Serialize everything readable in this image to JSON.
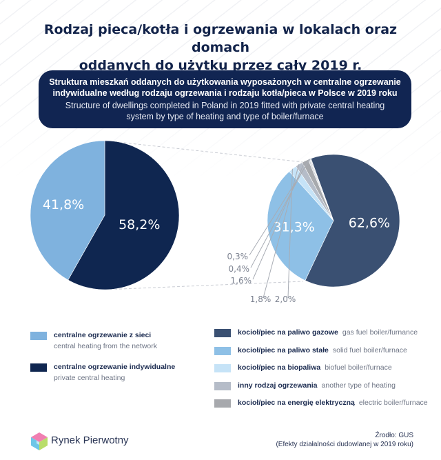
{
  "title_lines": [
    "Rodzaj pieca/kotła i ogrzewania w lokalach oraz domach",
    "oddanych do użytku przez cały 2019 r."
  ],
  "banner": {
    "pl_lines": [
      "Struktura mieszkań oddanych do użytkowania wyposażonych w centralne ogrzewanie",
      "indywidualne według rodzaju ogrzewania i rodzaju kotła/pieca w Polsce w 2019 roku"
    ],
    "en_lines": [
      "Structure of dwellings completed in Poland in 2019 fitted with private central heating",
      "system by type of heating and type of boiler/furnace"
    ]
  },
  "chart_data": [
    {
      "type": "pie",
      "slices": [
        {
          "name": "centralne ogrzewanie z sieci",
          "name_en": "central heating from the network",
          "value": 41.8,
          "label": "41,8%",
          "color": "#7fb2de"
        },
        {
          "name": "centralne ogrzewanie indywidualne",
          "name_en": "private central heating",
          "value": 58.2,
          "label": "58,2%",
          "color": "#0f2650"
        }
      ]
    },
    {
      "type": "pie",
      "slices": [
        {
          "name": "kocioł/piec na paliwo gazowe",
          "name_en": "gas fuel boiler/furnance",
          "value": 62.6,
          "label": "62,6%",
          "color": "#3a5072"
        },
        {
          "name": "kocioł/piec na paliwo stałe",
          "name_en": "solid fuel boiler/furnace",
          "value": 31.3,
          "label": "31,3%",
          "color": "#8ec0e6"
        },
        {
          "name": "kocioł/piec na biopaliwa",
          "name_en": "biofuel boiler/furnace",
          "value": 2.0,
          "label": "2,0%",
          "color": "#c6e3f7"
        },
        {
          "name": "inny rodzaj ogrzewania",
          "name_en": "another type of heating",
          "value": 1.8,
          "label": "1,8%",
          "color": "#b5bcc8"
        },
        {
          "name": "kocioł/piec na energię elektryczną",
          "name_en": "electric boiler/furnace",
          "value": 1.6,
          "label": "1,6%",
          "color": "#a7a9ad"
        },
        {
          "name": "",
          "value": 0.4,
          "label": "0,4%",
          "color": "#d4d7dc"
        },
        {
          "name": "",
          "value": 0.3,
          "label": "0,3%",
          "color": "#e2e4e8"
        }
      ]
    }
  ],
  "legend_left": [
    {
      "pl": "centralne ogrzewanie z sieci",
      "en": "central heating from the network",
      "color": "#7fb2de"
    },
    {
      "pl": "centralne ogrzewanie indywidualne",
      "en": "private central heating",
      "color": "#0f2650"
    }
  ],
  "legend_right": [
    {
      "pl": "kocioł/piec na paliwo gazowe",
      "en": "gas fuel boiler/furnance",
      "color": "#3a5072"
    },
    {
      "pl": "kocioł/piec na paliwo stałe",
      "en": "solid fuel boiler/furnace",
      "color": "#8ec0e6"
    },
    {
      "pl": "kocioł/piec na biopaliwa",
      "en": "biofuel boiler/furnace",
      "color": "#c6e3f7"
    },
    {
      "pl": "inny rodzaj ogrzewania",
      "en": "another type of heating",
      "color": "#b5bcc8"
    },
    {
      "pl": "kocioł/piec na energię elektryczną",
      "en": "electric boiler/furnace",
      "color": "#a7a9ad"
    }
  ],
  "logo_text": "Rynek Pierwotny",
  "source_lines": [
    "Źrodło: GUS",
    "(Efekty działalności dudowlanej w 2019 roku)"
  ]
}
